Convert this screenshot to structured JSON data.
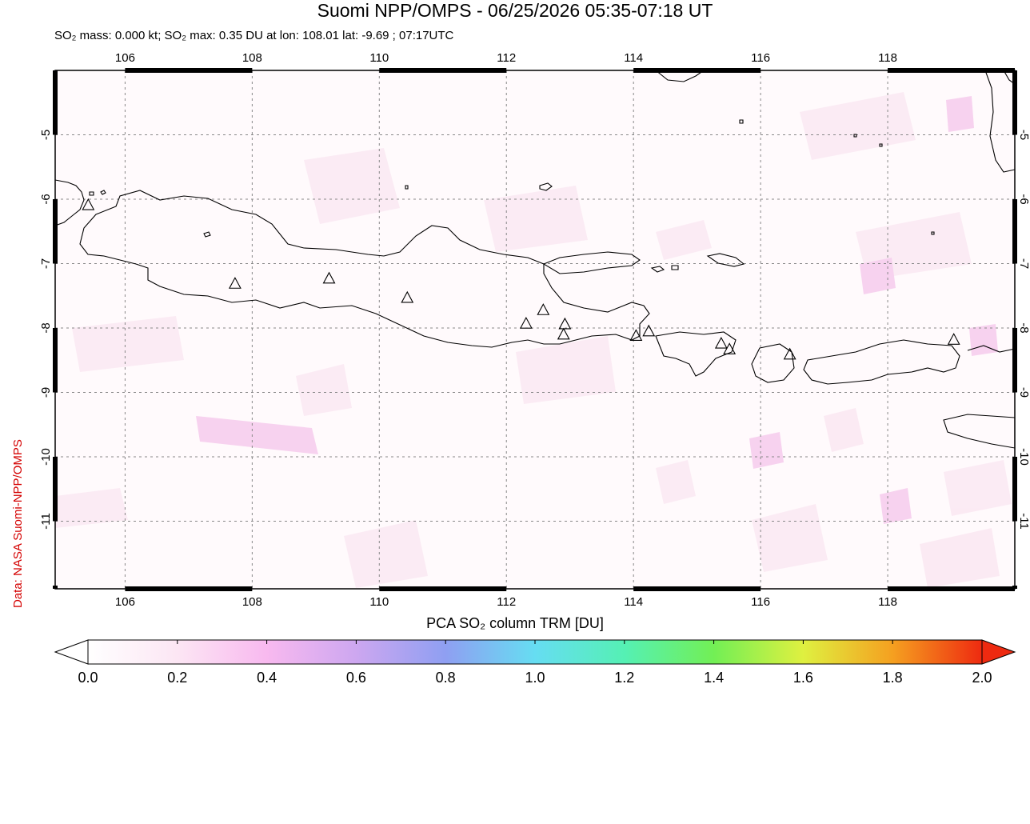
{
  "title": "Suomi NPP/OMPS - 06/25/2026 05:35-07:18 UT",
  "subtitle": "SO₂ mass: 0.000 kt; SO₂ max: 0.35 DU at lon: 108.01 lat: -9.69 ; 07:17UTC",
  "credit": "Data: NASA Suomi-NPP/OMPS",
  "map": {
    "lon_range": [
      104.9,
      120.0
    ],
    "lat_range": [
      -12.05,
      -4.0
    ],
    "lon_ticks": [
      "106",
      "108",
      "110",
      "112",
      "114",
      "116",
      "118"
    ],
    "lat_ticks": [
      "-5",
      "-6",
      "-7",
      "-8",
      "-9",
      "-10",
      "-11"
    ],
    "volcano_icon": "triangle-volcano-icon",
    "volcanoes": [
      {
        "lon": 105.42,
        "lat": -6.1
      },
      {
        "lon": 107.73,
        "lat": -7.32
      },
      {
        "lon": 109.21,
        "lat": -7.24
      },
      {
        "lon": 110.44,
        "lat": -7.54
      },
      {
        "lon": 112.31,
        "lat": -7.94
      },
      {
        "lon": 112.58,
        "lat": -7.73
      },
      {
        "lon": 112.92,
        "lat": -7.95
      },
      {
        "lon": 112.9,
        "lat": -8.11
      },
      {
        "lon": 114.04,
        "lat": -8.13
      },
      {
        "lon": 114.24,
        "lat": -8.06
      },
      {
        "lon": 115.38,
        "lat": -8.25
      },
      {
        "lon": 115.51,
        "lat": -8.34
      },
      {
        "lon": 116.46,
        "lat": -8.42
      },
      {
        "lon": 119.04,
        "lat": -8.19
      }
    ],
    "grid_color": "#888888",
    "coast_color": "#000000"
  },
  "colorbar": {
    "title": "PCA SO₂ column TRM [DU]",
    "labels": [
      "0.0",
      "0.2",
      "0.4",
      "0.6",
      "0.8",
      "1.0",
      "1.2",
      "1.4",
      "1.6",
      "1.8",
      "2.0"
    ],
    "colors": [
      "#ffffff",
      "#fce6f4",
      "#f8b9ef",
      "#cda7f0",
      "#8f9ff2",
      "#66ddf2",
      "#55f0b4",
      "#72ef55",
      "#dff040",
      "#f5a020",
      "#ee2a10"
    ]
  }
}
